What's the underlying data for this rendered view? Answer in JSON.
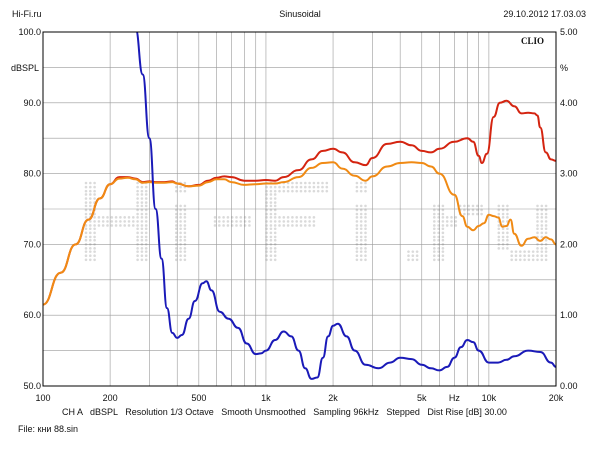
{
  "header": {
    "left": "Hi-Fi.ru",
    "center": "Sinusoidal",
    "right": "29.10.2012 17.03.03"
  },
  "chart_data": {
    "type": "line",
    "brand": "CLIO",
    "x_scale": "log",
    "xlim": [
      100,
      20000
    ],
    "ylim_left": [
      50,
      100
    ],
    "ylim_right": [
      0,
      5
    ],
    "left_unit": "dBSPL",
    "right_unit": "%",
    "left_ticks": [
      "50.0",
      "60.0",
      "70.0",
      "80.0",
      "90.0",
      "100.0"
    ],
    "right_ticks": [
      "0.00",
      "1.00",
      "2.00",
      "3.00",
      "4.00",
      "5.00"
    ],
    "x_ticks": [
      {
        "value": 100,
        "label": "100"
      },
      {
        "value": 200,
        "label": "200"
      },
      {
        "value": 500,
        "label": "500"
      },
      {
        "value": 1000,
        "label": "1k"
      },
      {
        "value": 2000,
        "label": "2k"
      },
      {
        "value": 5000,
        "label": "5k"
      },
      {
        "value": 7000,
        "label": "Hz"
      },
      {
        "value": 10000,
        "label": "10k"
      },
      {
        "value": 20000,
        "label": "20k"
      }
    ],
    "grid": true,
    "series": [
      {
        "color": "#d42410",
        "axis": "left",
        "points": [
          [
            100,
            61.5
          ],
          [
            120,
            66
          ],
          [
            140,
            70
          ],
          [
            160,
            73.5
          ],
          [
            180,
            76.5
          ],
          [
            200,
            78.5
          ],
          [
            220,
            79.5
          ],
          [
            240,
            79.5
          ],
          [
            260,
            79.3
          ],
          [
            280,
            78.8
          ],
          [
            300,
            78.9
          ],
          [
            320,
            78.8
          ],
          [
            350,
            78.8
          ],
          [
            380,
            78.9
          ],
          [
            400,
            78.6
          ],
          [
            450,
            78.2
          ],
          [
            500,
            78.4
          ],
          [
            550,
            79
          ],
          [
            600,
            79.4
          ],
          [
            650,
            79.6
          ],
          [
            700,
            79.5
          ],
          [
            800,
            79
          ],
          [
            900,
            79
          ],
          [
            1000,
            79.1
          ],
          [
            1100,
            79
          ],
          [
            1200,
            79.5
          ],
          [
            1400,
            80.5
          ],
          [
            1600,
            82
          ],
          [
            1800,
            83.2
          ],
          [
            2000,
            83.5
          ],
          [
            2200,
            83
          ],
          [
            2500,
            81.6
          ],
          [
            2800,
            81.2
          ],
          [
            3000,
            82.2
          ],
          [
            3500,
            84.2
          ],
          [
            4000,
            84.5
          ],
          [
            4500,
            84
          ],
          [
            5000,
            83.2
          ],
          [
            5500,
            83
          ],
          [
            6000,
            83.5
          ],
          [
            7000,
            84.5
          ],
          [
            8000,
            85
          ],
          [
            8500,
            84.5
          ],
          [
            9000,
            82.5
          ],
          [
            9300,
            81.5
          ],
          [
            9800,
            82.8
          ],
          [
            10500,
            88
          ],
          [
            11200,
            90
          ],
          [
            12000,
            90.3
          ],
          [
            13000,
            89.5
          ],
          [
            14000,
            88.5
          ],
          [
            15000,
            88.6
          ],
          [
            16000,
            88.5
          ],
          [
            16500,
            88.2
          ],
          [
            17000,
            86.5
          ],
          [
            18000,
            83
          ],
          [
            19000,
            82
          ],
          [
            20000,
            81.8
          ]
        ]
      },
      {
        "color": "#f08a14",
        "axis": "left",
        "points": [
          [
            100,
            61.5
          ],
          [
            120,
            66
          ],
          [
            140,
            70
          ],
          [
            160,
            73.5
          ],
          [
            180,
            76.5
          ],
          [
            200,
            78.5
          ],
          [
            220,
            79.3
          ],
          [
            240,
            79.4
          ],
          [
            260,
            79.2
          ],
          [
            280,
            78.7
          ],
          [
            300,
            78.8
          ],
          [
            320,
            78.7
          ],
          [
            350,
            78.7
          ],
          [
            380,
            78.8
          ],
          [
            400,
            78.6
          ],
          [
            450,
            78.2
          ],
          [
            500,
            78.3
          ],
          [
            550,
            78.8
          ],
          [
            600,
            79.2
          ],
          [
            650,
            79.2
          ],
          [
            700,
            78.8
          ],
          [
            800,
            78.4
          ],
          [
            900,
            78.5
          ],
          [
            1000,
            78.6
          ],
          [
            1100,
            78.6
          ],
          [
            1200,
            78.8
          ],
          [
            1400,
            79.5
          ],
          [
            1600,
            80.8
          ],
          [
            1800,
            81.5
          ],
          [
            2000,
            81.6
          ],
          [
            2200,
            80.7
          ],
          [
            2500,
            79.7
          ],
          [
            2800,
            79
          ],
          [
            3000,
            79.6
          ],
          [
            3500,
            81
          ],
          [
            4000,
            81.5
          ],
          [
            4500,
            81.6
          ],
          [
            5000,
            81.5
          ],
          [
            5500,
            81
          ],
          [
            6000,
            80
          ],
          [
            7000,
            77
          ],
          [
            7600,
            74
          ],
          [
            8000,
            72.5
          ],
          [
            8500,
            72
          ],
          [
            9000,
            72.6
          ],
          [
            9500,
            73
          ],
          [
            10000,
            74.2
          ],
          [
            10500,
            74
          ],
          [
            11000,
            73.8
          ],
          [
            11500,
            72.5
          ],
          [
            12000,
            72.6
          ],
          [
            12500,
            73.5
          ],
          [
            13000,
            71.5
          ],
          [
            14000,
            69.8
          ],
          [
            15000,
            70.8
          ],
          [
            16000,
            71
          ],
          [
            17000,
            70.5
          ],
          [
            18000,
            71
          ],
          [
            19000,
            70.7
          ],
          [
            20000,
            70
          ]
        ]
      },
      {
        "color": "#1a1ab8",
        "axis": "right",
        "points": [
          [
            260,
            5.05
          ],
          [
            280,
            4.4
          ],
          [
            300,
            3.5
          ],
          [
            320,
            2.5
          ],
          [
            340,
            1.8
          ],
          [
            360,
            1.1
          ],
          [
            380,
            0.75
          ],
          [
            400,
            0.68
          ],
          [
            420,
            0.72
          ],
          [
            450,
            0.95
          ],
          [
            480,
            1.2
          ],
          [
            520,
            1.45
          ],
          [
            540,
            1.48
          ],
          [
            570,
            1.35
          ],
          [
            620,
            1.05
          ],
          [
            680,
            0.95
          ],
          [
            750,
            0.82
          ],
          [
            820,
            0.6
          ],
          [
            900,
            0.45
          ],
          [
            950,
            0.46
          ],
          [
            1000,
            0.5
          ],
          [
            1100,
            0.65
          ],
          [
            1200,
            0.77
          ],
          [
            1300,
            0.7
          ],
          [
            1400,
            0.5
          ],
          [
            1500,
            0.25
          ],
          [
            1600,
            0.1
          ],
          [
            1700,
            0.12
          ],
          [
            1800,
            0.4
          ],
          [
            1900,
            0.7
          ],
          [
            2000,
            0.85
          ],
          [
            2100,
            0.88
          ],
          [
            2300,
            0.7
          ],
          [
            2500,
            0.5
          ],
          [
            2800,
            0.3
          ],
          [
            3200,
            0.25
          ],
          [
            3600,
            0.33
          ],
          [
            4000,
            0.4
          ],
          [
            4500,
            0.38
          ],
          [
            5000,
            0.3
          ],
          [
            5500,
            0.25
          ],
          [
            6000,
            0.22
          ],
          [
            6500,
            0.27
          ],
          [
            7000,
            0.4
          ],
          [
            7500,
            0.55
          ],
          [
            8000,
            0.65
          ],
          [
            8500,
            0.62
          ],
          [
            9000,
            0.5
          ],
          [
            10000,
            0.33
          ],
          [
            11000,
            0.33
          ],
          [
            12000,
            0.37
          ],
          [
            13000,
            0.42
          ],
          [
            15000,
            0.5
          ],
          [
            17000,
            0.48
          ],
          [
            19000,
            0.33
          ],
          [
            20000,
            0.27
          ]
        ]
      }
    ]
  },
  "watermark": "Hi-Fi.ru",
  "footer": {
    "info": "CH A   dBSPL   Resolution 1/3 Octave   Smooth Unsmoothed   Sampling 96kHz   Stepped   Dist Rise [dB] 30.00",
    "file": "File: кни 88.sin"
  }
}
